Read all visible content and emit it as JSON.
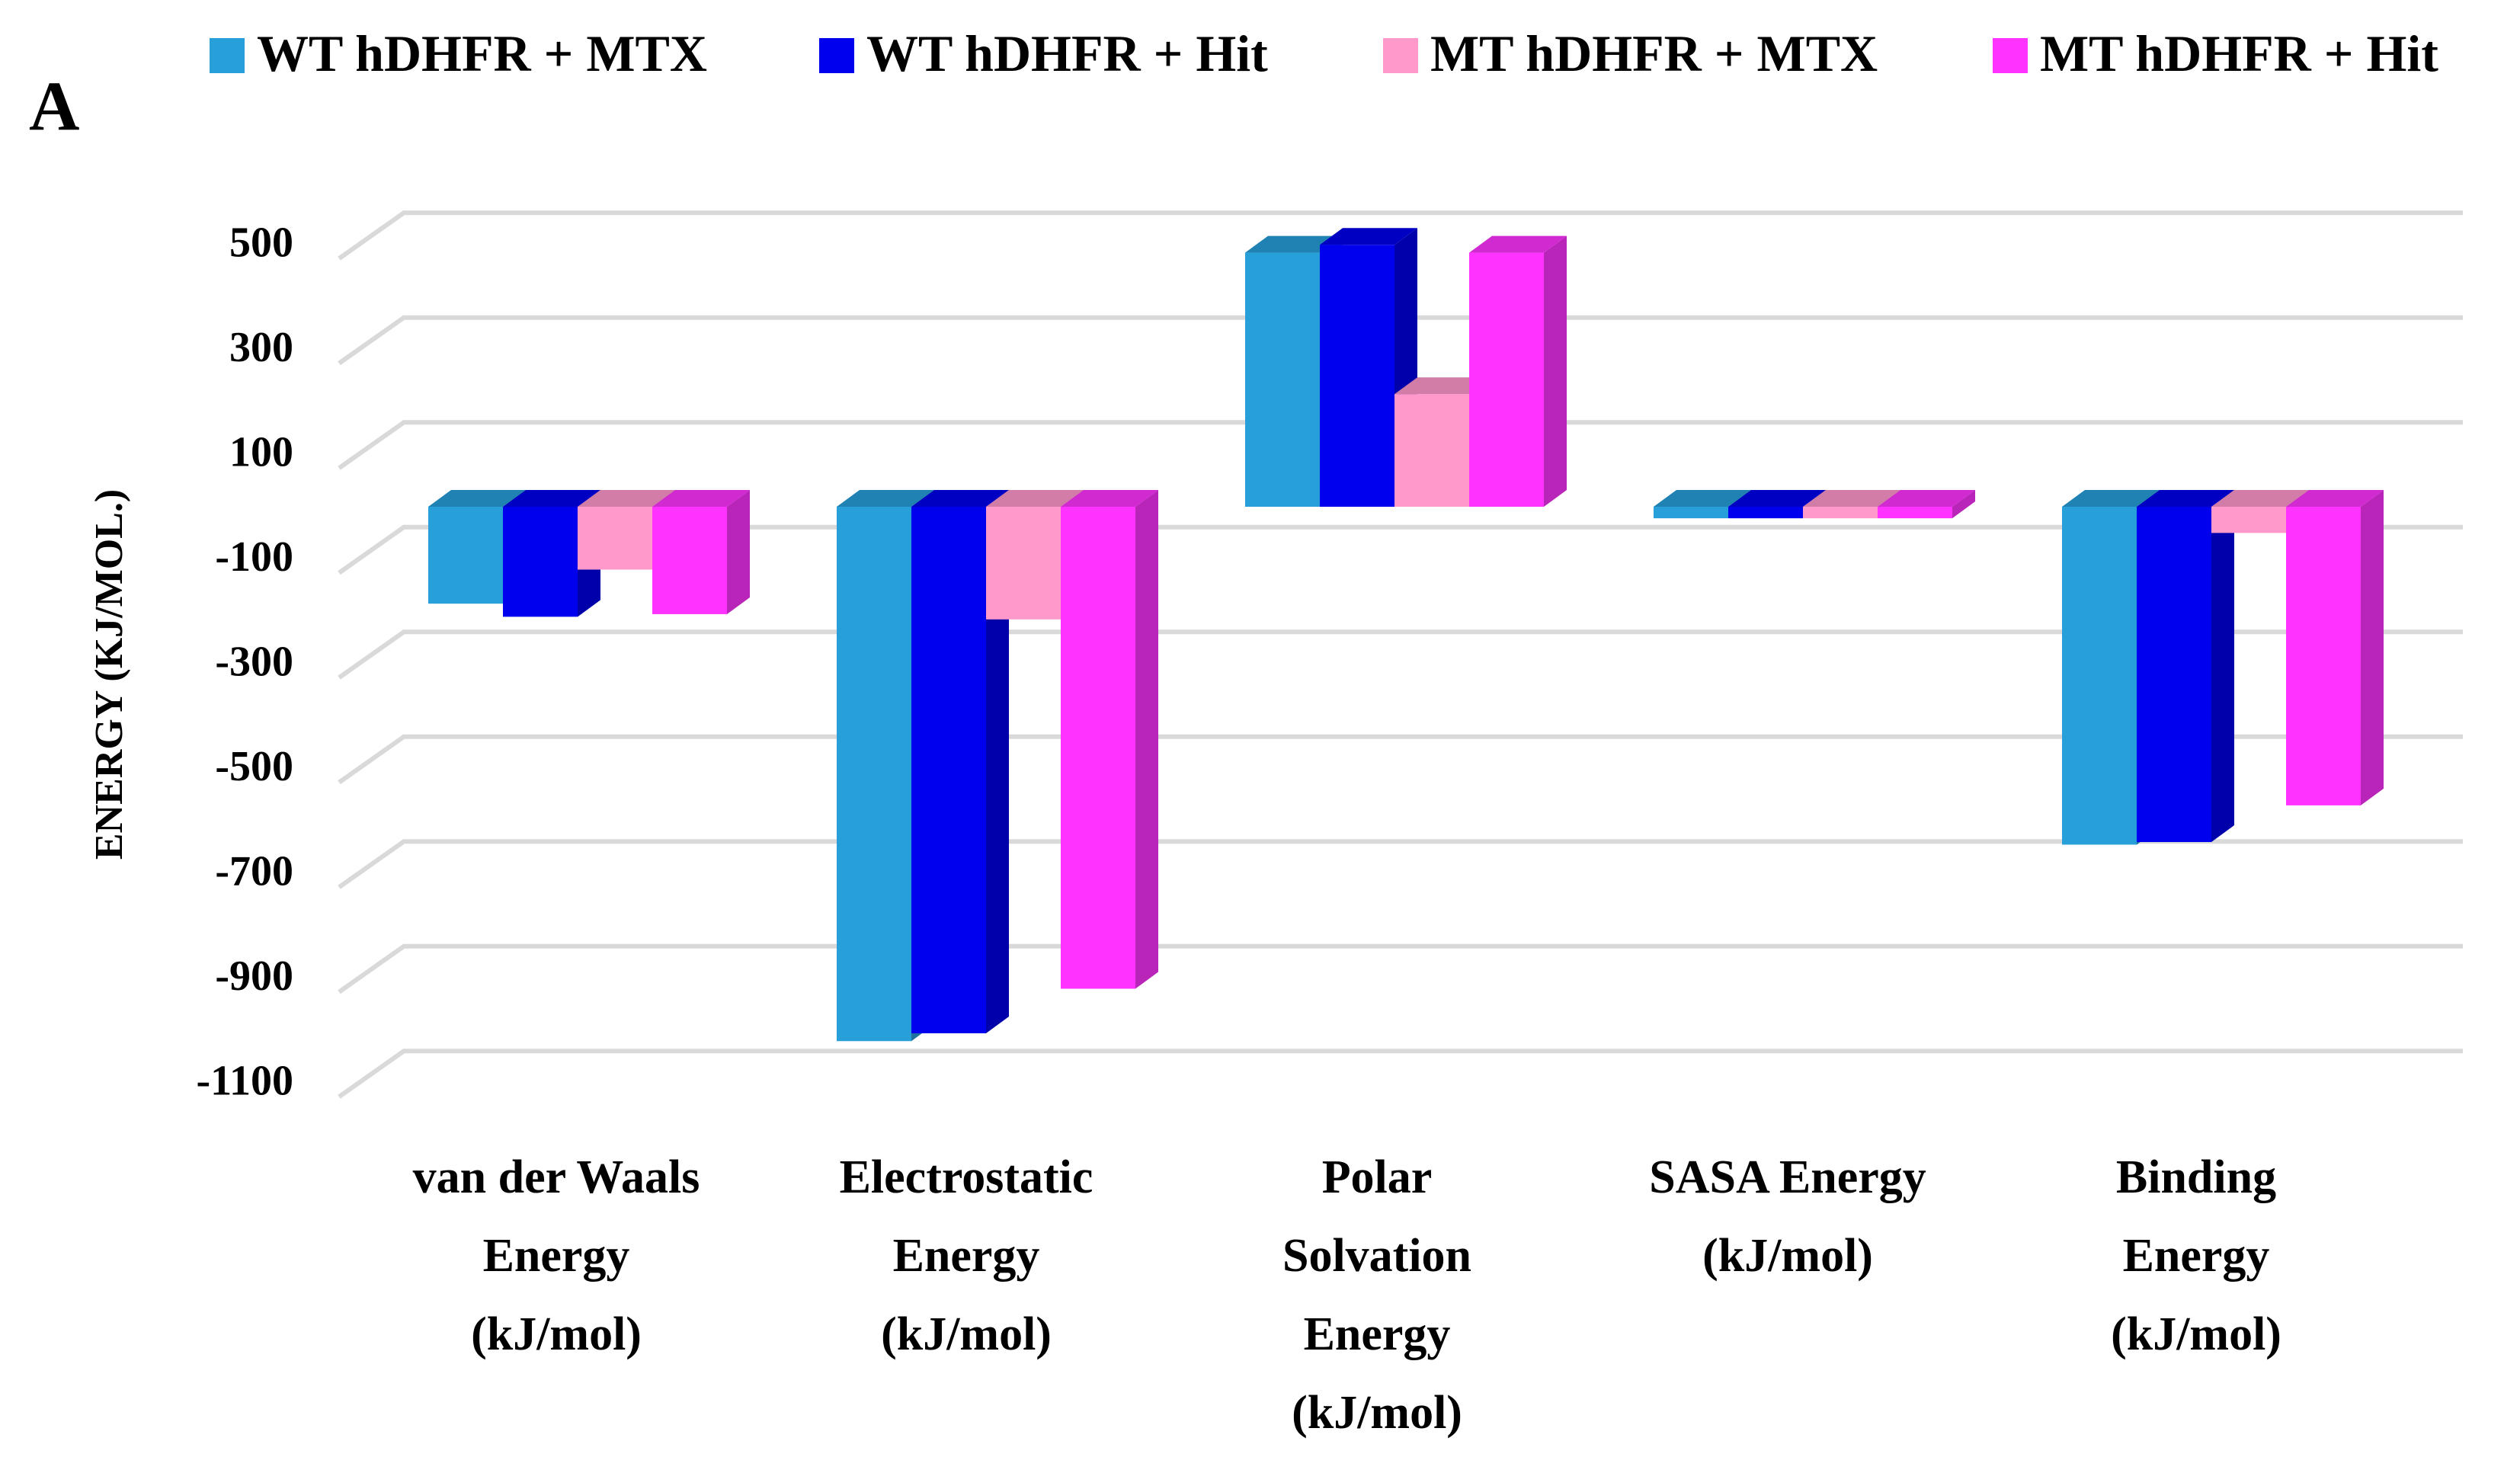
{
  "panel_label": "A",
  "chart_data": {
    "type": "bar",
    "title": "",
    "ylabel": "ENERGY (KJ/MOL.)",
    "xlabel": "",
    "ylim": [
      -1100,
      500
    ],
    "yticks": [
      "500",
      "300",
      "100",
      "-100",
      "-300",
      "-500",
      "-700",
      "-900",
      "-1100"
    ],
    "ytick_values": [
      500,
      300,
      100,
      -100,
      -300,
      -500,
      -700,
      -900,
      -1100
    ],
    "grid": true,
    "legend_position": "top",
    "three_d": true,
    "categories": [
      [
        "van der Waals",
        "Energy",
        "(kJ/mol)"
      ],
      [
        "Electrostatic",
        "Energy",
        "(kJ/mol)"
      ],
      [
        "Polar",
        "Solvation",
        "Energy",
        "(kJ/mol)"
      ],
      [
        "SASA Energy",
        "(kJ/mol)"
      ],
      [
        "Binding",
        "Energy",
        "(kJ/mol)"
      ]
    ],
    "series": [
      {
        "name": "WT hDHFR + MTX",
        "color": "#279fd9",
        "values": [
          -185,
          -1020,
          485,
          -22,
          -645
        ]
      },
      {
        "name": "WT hDHFR + Hit",
        "color": "#0000ee",
        "values": [
          -210,
          -1005,
          500,
          -22,
          -640
        ]
      },
      {
        "name": "MT hDHFR + MTX",
        "color": "#ff99cc",
        "values": [
          -120,
          -215,
          215,
          -22,
          -50
        ]
      },
      {
        "name": "MT hDHFR + Hit",
        "color": "#ff33ff",
        "values": [
          -205,
          -920,
          485,
          -22,
          -570
        ]
      }
    ]
  }
}
